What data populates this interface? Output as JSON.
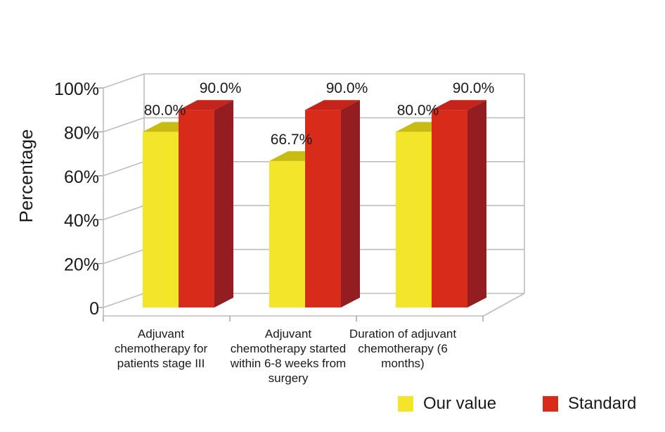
{
  "chart_data": {
    "type": "bar",
    "ylabel": "Percentage",
    "ylim": [
      0,
      100
    ],
    "yticks": [
      0,
      20,
      40,
      60,
      80,
      100
    ],
    "ytick_labels": [
      "0",
      "20%",
      "40%",
      "60%",
      "80%",
      "100%"
    ],
    "categories": [
      "Adjuvant chemotherapy for patients stage III",
      "Adjuvant chemotherapy started within 6-8 weeks from surgery",
      "Duration of adjuvant chemotherapy (6 months)"
    ],
    "series": [
      {
        "name": "Our value",
        "values": [
          80.0,
          66.7,
          80.0
        ],
        "labels": [
          "80.0%",
          "66.7%",
          "80.0%"
        ],
        "color": "#f2e52a"
      },
      {
        "name": "Standard",
        "values": [
          90.0,
          90.0,
          90.0
        ],
        "labels": [
          "90.0%",
          "90.0%",
          "90.0%"
        ],
        "color": "#d92b1a"
      }
    ],
    "legend_position": "bottom-right",
    "grid": true
  }
}
